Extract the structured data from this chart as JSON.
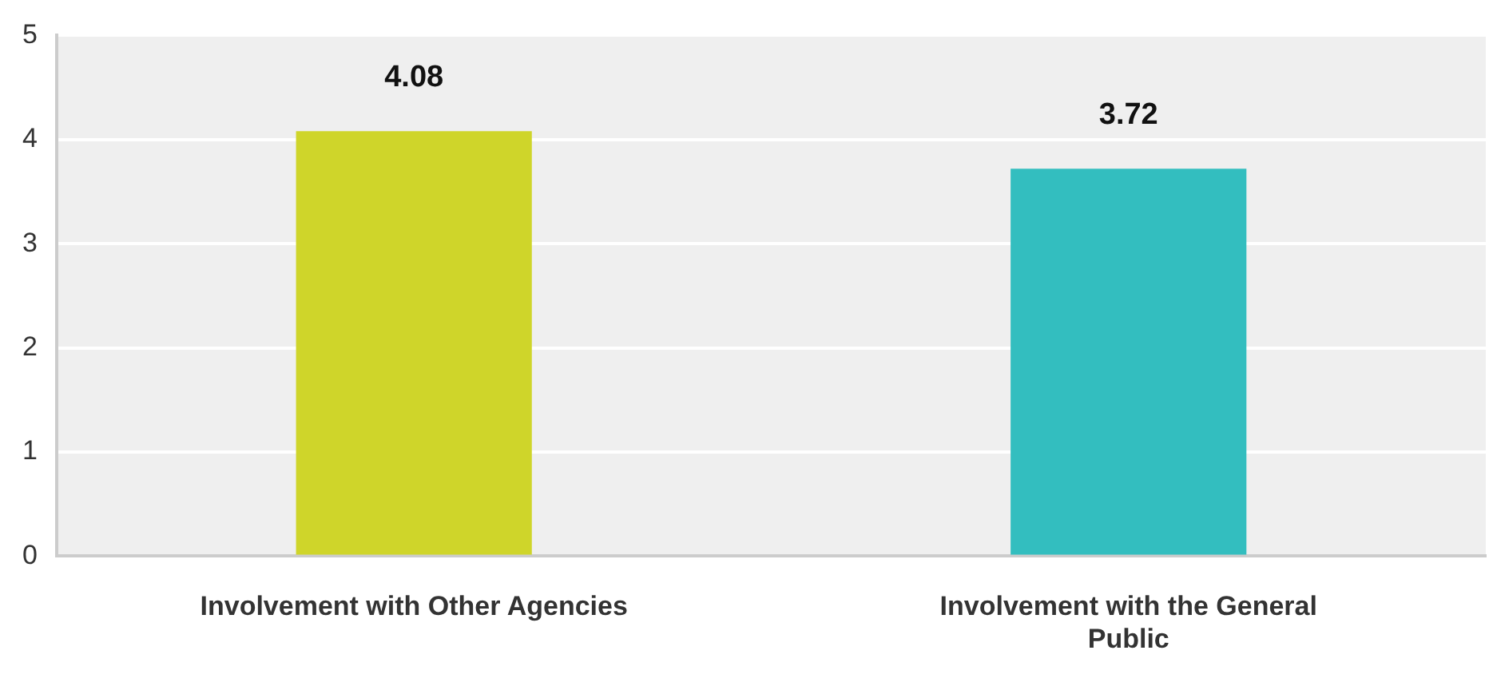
{
  "chart_data": {
    "type": "bar",
    "categories": [
      "Involvement with Other Agencies",
      "Involvement with the General Public"
    ],
    "series": [
      {
        "values": [
          4.08,
          3.72
        ],
        "colors": [
          "#cfd52a",
          "#33bebf"
        ]
      }
    ],
    "ylim": [
      0,
      5
    ],
    "yticks": [
      0,
      1,
      2,
      3,
      4,
      5
    ],
    "grid": "y",
    "legend": false,
    "data_labels": true
  }
}
